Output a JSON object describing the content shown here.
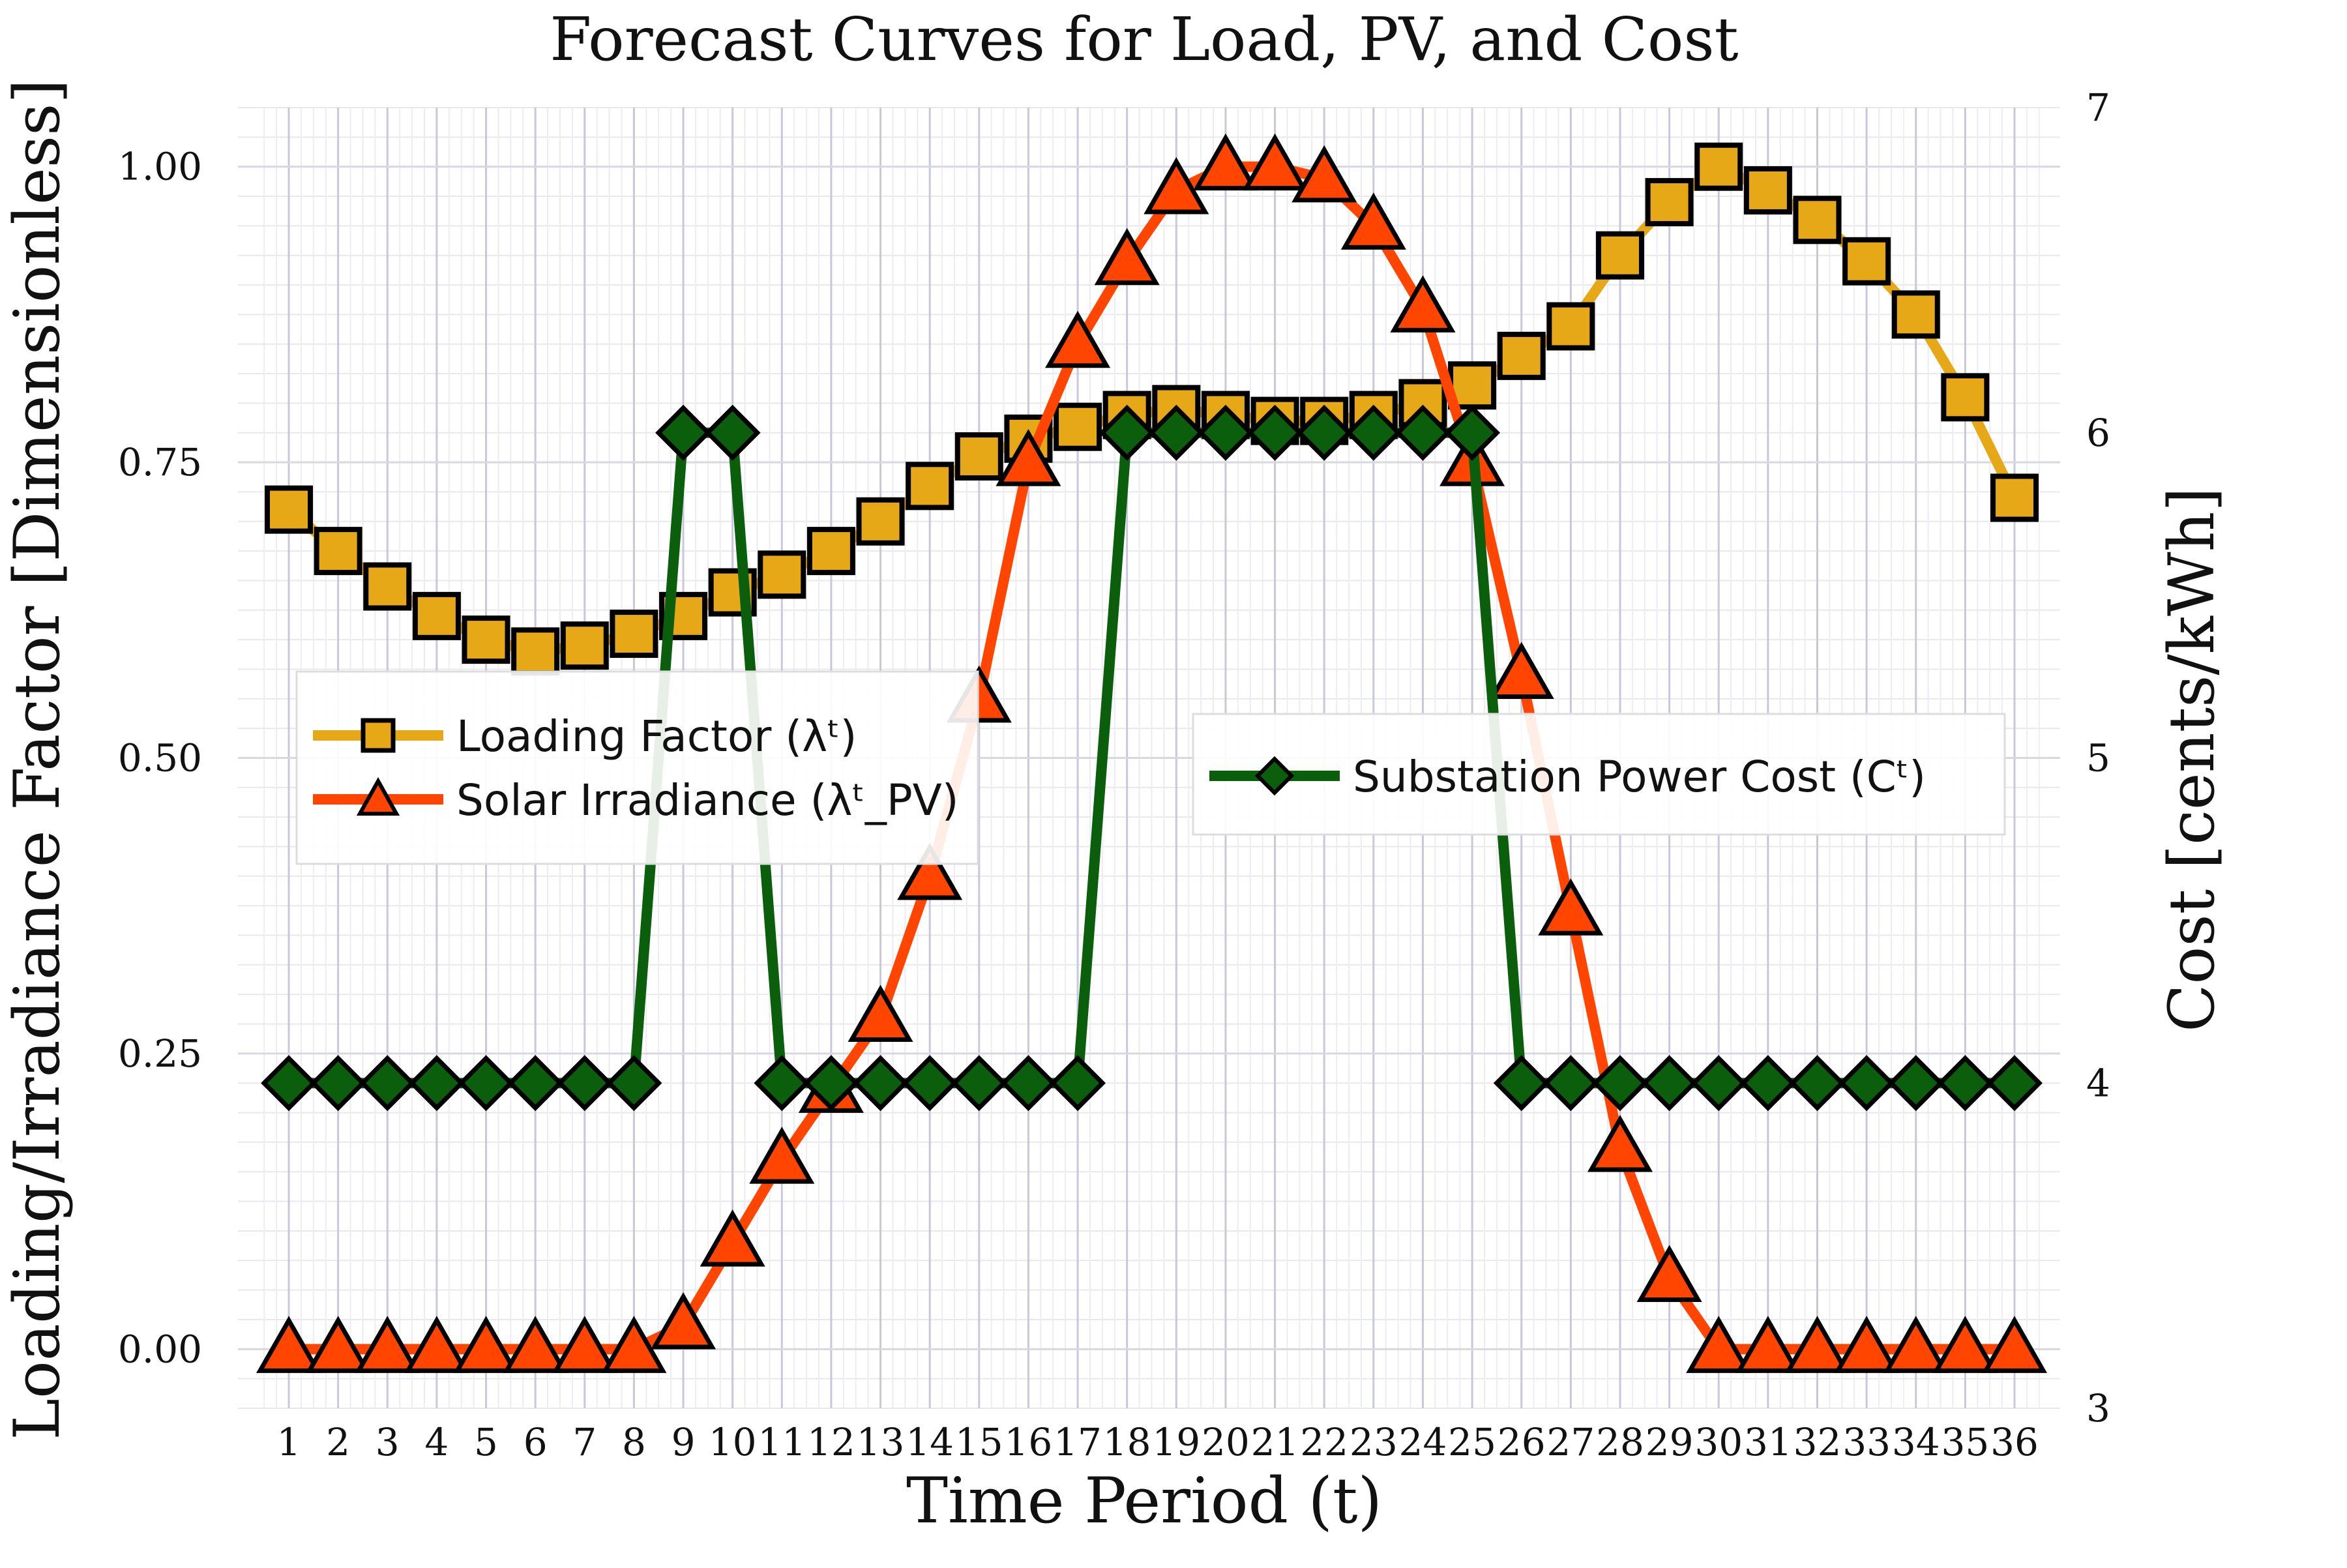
{
  "chart_data": {
    "type": "line",
    "title": "Forecast Curves for Load, PV, and Cost",
    "xlabel": "Time Period (t)",
    "ylabel_left": "Loading/Irradiance Factor [Dimensionless]",
    "ylabel_right": "Cost [cents/kWh]",
    "x": [
      1,
      2,
      3,
      4,
      5,
      6,
      7,
      8,
      9,
      10,
      11,
      12,
      13,
      14,
      15,
      16,
      17,
      18,
      19,
      20,
      21,
      22,
      23,
      24,
      25,
      26,
      27,
      28,
      29,
      30,
      31,
      32,
      33,
      34,
      35,
      36
    ],
    "x_tick_labels": [
      "1",
      "2",
      "3",
      "4",
      "5",
      "6",
      "7",
      "8",
      "9",
      "10",
      "11",
      "12",
      "13",
      "14",
      "15",
      "16",
      "17",
      "18",
      "19",
      "20",
      "21",
      "22",
      "23",
      "24",
      "25",
      "26",
      "27",
      "28",
      "29",
      "30",
      "31",
      "32",
      "33",
      "34",
      "35",
      "36"
    ],
    "ylim_left": [
      -0.05,
      1.05
    ],
    "ylim_right": [
      3,
      7
    ],
    "y_ticks_left": [
      "0.00",
      "0.25",
      "0.50",
      "0.75",
      "1.00"
    ],
    "y_ticks_left_values": [
      0,
      0.25,
      0.5,
      0.75,
      1.0
    ],
    "y_ticks_right": [
      "3",
      "4",
      "5",
      "6",
      "7"
    ],
    "y_ticks_right_values": [
      3,
      4,
      5,
      6,
      7
    ],
    "grid": true,
    "series": [
      {
        "name": "Loading Factor (λᵗ)",
        "axis": "left",
        "color": "#E6A817",
        "marker": "square",
        "values": [
          0.71,
          0.675,
          0.645,
          0.62,
          0.6,
          0.59,
          0.595,
          0.605,
          0.62,
          0.64,
          0.655,
          0.675,
          0.7,
          0.73,
          0.755,
          0.77,
          0.78,
          0.79,
          0.795,
          0.79,
          0.785,
          0.785,
          0.79,
          0.8,
          0.815,
          0.84,
          0.865,
          0.925,
          0.97,
          1.0,
          0.98,
          0.955,
          0.92,
          0.875,
          0.805,
          0.72
        ]
      },
      {
        "name": "Solar Irradiance (λᵗ_PV)",
        "axis": "left",
        "color": "#FF4500",
        "marker": "triangle",
        "values": [
          0,
          0,
          0,
          0,
          0,
          0,
          0,
          0,
          0.02,
          0.09,
          0.16,
          0.22,
          0.28,
          0.4,
          0.55,
          0.75,
          0.85,
          0.92,
          0.98,
          1.0,
          1.0,
          0.99,
          0.95,
          0.88,
          0.75,
          0.57,
          0.37,
          0.17,
          0.06,
          0,
          0,
          0,
          0,
          0,
          0,
          0
        ]
      },
      {
        "name": "Substation Power Cost (Cᵗ)",
        "axis": "right",
        "color": "#0B5E0B",
        "marker": "diamond",
        "values": [
          4,
          4,
          4,
          4,
          4,
          4,
          4,
          4,
          6,
          6,
          4,
          4,
          4,
          4,
          4,
          4,
          4,
          6,
          6,
          6,
          6,
          6,
          6,
          6,
          6,
          4,
          4,
          4,
          4,
          4,
          4,
          4,
          4,
          4,
          4,
          4
        ]
      }
    ],
    "legend_left": [
      "Loading Factor (λᵗ)",
      "Solar Irradiance (λᵗ_PV)"
    ],
    "legend_right": [
      "Substation Power Cost (Cᵗ)"
    ],
    "legend_placement": [
      "center-left",
      "center-right"
    ]
  }
}
